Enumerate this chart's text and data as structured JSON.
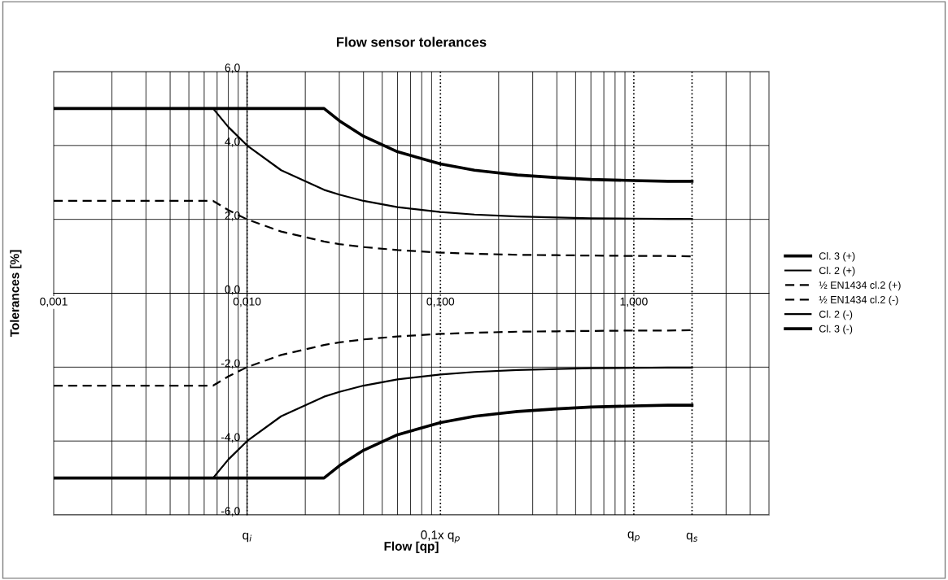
{
  "chart_data": {
    "type": "line",
    "title": "Flow sensor tolerances",
    "xlabel": "Flow [qp]",
    "ylabel": "Tolerances [%]",
    "x": [
      0.001,
      0.00667,
      0.008,
      0.01,
      0.015,
      0.025,
      0.03,
      0.04,
      0.06,
      0.1,
      0.15,
      0.25,
      0.4,
      0.6,
      1,
      1.5,
      2
    ],
    "series": [
      {
        "name": "Cl. 3 (+)",
        "color": "#000000",
        "line_style": "solid",
        "values": [
          5,
          5,
          5,
          5,
          5,
          5,
          4.67,
          4.25,
          3.83,
          3.5,
          3.33,
          3.2,
          3.13,
          3.08,
          3.05,
          3.03,
          3.03
        ]
      },
      {
        "name": "Cl. 2 (+)",
        "color": "#000000",
        "line_style": "solid",
        "values": [
          5,
          5,
          4.5,
          4,
          3.33,
          2.8,
          2.67,
          2.5,
          2.33,
          2.2,
          2.13,
          2.08,
          2.05,
          2.03,
          2.02,
          2.01,
          2.01
        ]
      },
      {
        "name": "½ EN1434 cl.2 (+)",
        "color": "#000000",
        "line_style": "dashed",
        "values": [
          2.5,
          2.5,
          2.25,
          2,
          1.67,
          1.4,
          1.33,
          1.25,
          1.17,
          1.1,
          1.07,
          1.04,
          1.03,
          1.02,
          1.01,
          1.01,
          1.0
        ]
      },
      {
        "name": "½ EN1434 cl.2 (-)",
        "color": "#000000",
        "line_style": "dashed",
        "values": [
          -2.5,
          -2.5,
          -2.25,
          -2,
          -1.67,
          -1.4,
          -1.33,
          -1.25,
          -1.17,
          -1.1,
          -1.07,
          -1.04,
          -1.03,
          -1.02,
          -1.01,
          -1.01,
          -1.0
        ]
      },
      {
        "name": "Cl. 2 (-)",
        "color": "#000000",
        "line_style": "solid",
        "values": [
          -5,
          -5,
          -4.5,
          -4,
          -3.33,
          -2.8,
          -2.67,
          -2.5,
          -2.33,
          -2.2,
          -2.13,
          -2.08,
          -2.05,
          -2.03,
          -2.02,
          -2.01,
          -2.01
        ]
      },
      {
        "name": "Cl. 3 (-)",
        "color": "#000000",
        "line_style": "solid",
        "values": [
          -5,
          -5,
          -5,
          -5,
          -5,
          -5,
          -4.67,
          -4.25,
          -3.83,
          -3.5,
          -3.33,
          -3.2,
          -3.13,
          -3.08,
          -3.05,
          -3.03,
          -3.03
        ]
      }
    ],
    "log": "x",
    "xlim": [
      0.001,
      5
    ],
    "xticks": [
      {
        "value": 0.001,
        "label": "0,001"
      },
      {
        "value": 0.01,
        "label": "0,010"
      },
      {
        "value": 0.1,
        "label": "0,100"
      },
      {
        "value": 1,
        "label": "1,000"
      }
    ],
    "ylim": [
      -6,
      6
    ],
    "yticks": [
      {
        "value": -6,
        "label": "-6,0"
      },
      {
        "value": -4,
        "label": "-4,0"
      },
      {
        "value": -2,
        "label": "-2,0"
      },
      {
        "value": 0,
        "label": "0,0"
      },
      {
        "value": 2,
        "label": "2,0"
      },
      {
        "value": 4,
        "label": "4,0"
      },
      {
        "value": 6,
        "label": "6,0"
      }
    ],
    "ref_lines": [
      {
        "axis": "x",
        "value": 0.01,
        "label": "q$_{i}$",
        "color": "#000000",
        "line_style": "dotted"
      },
      {
        "axis": "x",
        "value": 0.1,
        "label": "0,1x q$_{p}$",
        "color": "#000000",
        "line_style": "dotted"
      },
      {
        "axis": "x",
        "value": 1,
        "label": "q$_{p}$",
        "color": "#000000",
        "line_style": "dotted"
      },
      {
        "axis": "x",
        "value": 2,
        "label": "q$_{s}$",
        "color": "#000000",
        "line_style": "dotted"
      }
    ],
    "grid": true,
    "legend": "right",
    "marker": "none"
  }
}
